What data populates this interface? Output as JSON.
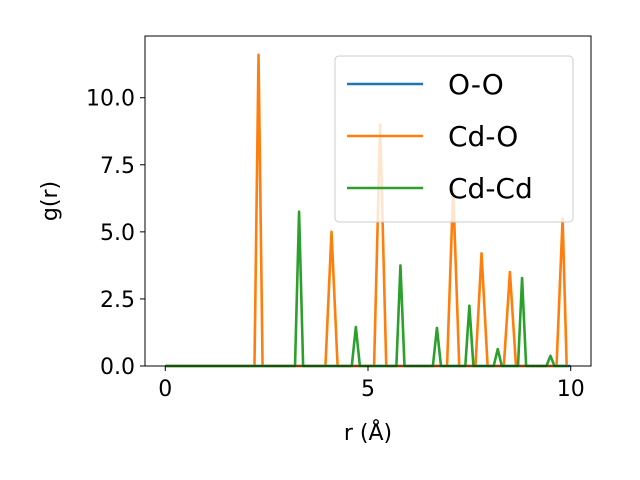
{
  "chart_data": {
    "type": "line",
    "xlabel": "r (Å)",
    "ylabel": "g(r)",
    "xlim": [
      -0.5,
      10.5
    ],
    "ylim": [
      0,
      12.3
    ],
    "xticks": [
      0,
      5,
      10
    ],
    "xtick_labels": [
      "0",
      "5",
      "10"
    ],
    "yticks": [
      0.0,
      2.5,
      5.0,
      7.5,
      10.0
    ],
    "ytick_labels": [
      "0.0",
      "2.5",
      "5.0",
      "7.5",
      "10.0"
    ],
    "grid": false,
    "legend_position": "top-right",
    "series": [
      {
        "name": "O-O",
        "color": "#1f77b4",
        "x": [
          0.0,
          10.0
        ],
        "y": [
          0.0,
          0.0
        ]
      },
      {
        "name": "Cd-O",
        "color": "#ff7f0e",
        "x": [
          0.0,
          2.2,
          2.3,
          2.4,
          3.95,
          4.1,
          4.25,
          5.15,
          5.3,
          5.45,
          6.95,
          7.1,
          7.25,
          7.65,
          7.8,
          7.95,
          8.35,
          8.5,
          8.65,
          9.65,
          9.8,
          9.9
        ],
        "y": [
          0.0,
          0.0,
          11.6,
          0.0,
          0.0,
          5.0,
          0.0,
          0.0,
          9.0,
          0.0,
          0.0,
          6.6,
          0.0,
          0.0,
          4.2,
          0.0,
          0.0,
          3.5,
          0.0,
          0.0,
          5.5,
          0.0
        ]
      },
      {
        "name": "Cd-Cd",
        "color": "#2ca02c",
        "x": [
          0.0,
          3.2,
          3.3,
          3.4,
          4.6,
          4.7,
          4.8,
          5.7,
          5.8,
          5.9,
          6.6,
          6.7,
          6.8,
          7.4,
          7.5,
          7.6,
          8.1,
          8.2,
          8.3,
          8.7,
          8.8,
          8.9,
          9.4,
          9.5,
          9.6,
          9.9
        ],
        "y": [
          0.0,
          0.0,
          5.75,
          0.0,
          0.0,
          1.45,
          0.0,
          0.0,
          3.75,
          0.0,
          0.0,
          1.42,
          0.0,
          0.0,
          2.25,
          0.0,
          0.0,
          0.63,
          0.0,
          0.0,
          3.28,
          0.0,
          0.0,
          0.38,
          0.0,
          0.0
        ]
      }
    ]
  }
}
